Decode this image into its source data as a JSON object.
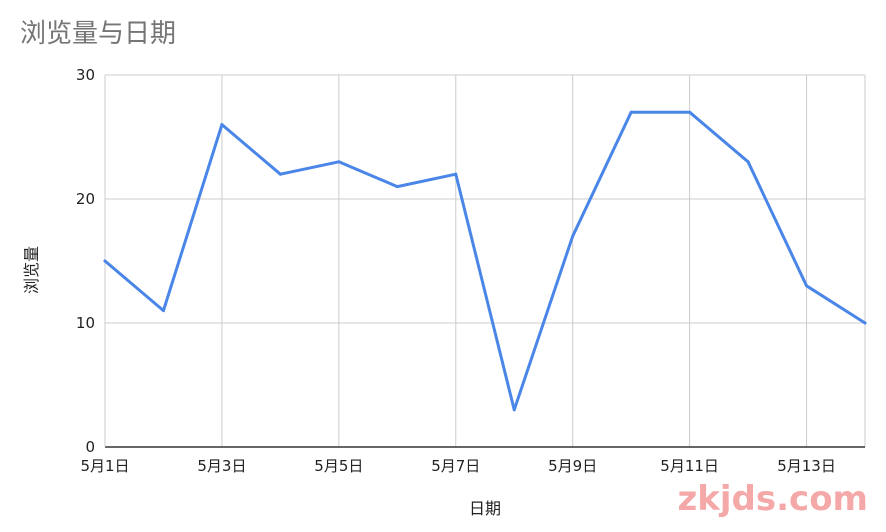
{
  "chart_data": {
    "type": "line",
    "title": "浏览量与日期",
    "xlabel": "日期",
    "ylabel": "浏览量",
    "x_tick_labels": [
      "5月1日",
      "5月3日",
      "5月5日",
      "5月7日",
      "5月9日",
      "5月11日",
      "5月13日"
    ],
    "x_tick_positions": [
      0,
      2,
      4,
      6,
      8,
      10,
      12
    ],
    "categories": [
      "5月1日",
      "5月2日",
      "5月3日",
      "5月4日",
      "5月5日",
      "5月6日",
      "5月7日",
      "5月8日",
      "5月9日",
      "5月10日",
      "5月11日",
      "5月12日",
      "5月13日",
      "5月14日"
    ],
    "series": [
      {
        "values": [
          15,
          11,
          26,
          22,
          23,
          21,
          22,
          3,
          17,
          27,
          27,
          23,
          13,
          10
        ]
      }
    ],
    "ylim": [
      0,
      30
    ],
    "y_ticks": [
      0,
      10,
      20,
      30
    ],
    "grid": true,
    "colors": {
      "line": "#4a86e8",
      "grid": "#cccccc",
      "axis": "#333333"
    }
  },
  "watermark": "zkjds.com"
}
